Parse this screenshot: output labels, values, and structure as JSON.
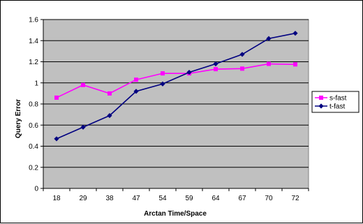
{
  "chart_data": {
    "type": "line",
    "title": "",
    "xlabel": "Arctan Time/Space",
    "ylabel": "Query Error",
    "categories": [
      "18",
      "29",
      "38",
      "47",
      "54",
      "59",
      "64",
      "67",
      "70",
      "72"
    ],
    "ylim": [
      0,
      1.6
    ],
    "yticks": [
      "0",
      "0.2",
      "0.4",
      "0.6",
      "0.8",
      "1",
      "1.2",
      "1.4",
      "1.6"
    ],
    "grid": true,
    "legend_position": "right",
    "plot_background": "#c0c0c0",
    "series": [
      {
        "name": "s-fast",
        "color": "#ff00ff",
        "marker": "square",
        "values": [
          0.86,
          0.98,
          0.9,
          1.03,
          1.09,
          1.09,
          1.13,
          1.135,
          1.18,
          1.175
        ]
      },
      {
        "name": "t-fast",
        "color": "#000080",
        "marker": "diamond",
        "values": [
          0.47,
          0.58,
          0.69,
          0.92,
          0.99,
          1.1,
          1.18,
          1.27,
          1.42,
          1.47
        ]
      }
    ]
  }
}
